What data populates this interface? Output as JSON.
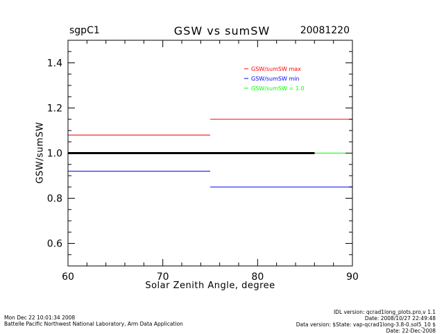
{
  "header": {
    "site": "sgpC1",
    "title": "GSW vs sumSW",
    "date": "20081220"
  },
  "footer": {
    "left": [
      "Mon Dec 22 10:01:34 2008",
      "Battelle Pacific Northwest National Laboratory, Arm Data Application"
    ],
    "right": [
      "IDL version: qcrad1long_plots.pro,v 1.1",
      "Date: 2008/10/27 22:49:48",
      "Data version: $State: vap-qcrad1long-3.8-0.sol5_10 $",
      "Date: 22-Dec-2008"
    ]
  },
  "chart_data": {
    "type": "line",
    "title": "GSW vs sumSW",
    "xlabel": "Solar Zenith Angle, degree",
    "ylabel": "GSW/sumSW",
    "xlim": [
      60,
      90
    ],
    "ylim": [
      0.5,
      1.5
    ],
    "xticks": [
      60,
      70,
      80,
      90
    ],
    "yticks": [
      0.6,
      0.8,
      1.0,
      1.2,
      1.4
    ],
    "ytick_labels": [
      "0.6",
      "0.8",
      "1.0",
      "1.2",
      "1.4"
    ],
    "legend_position": "top-right",
    "legend": [
      {
        "label": "GSW/sumSW max",
        "color": "#ff0000"
      },
      {
        "label": "GSW/sumSW min",
        "color": "#0000ff"
      },
      {
        "label": "GSW/sumSW = 1.0",
        "color": "#00ff00"
      }
    ],
    "series": [
      {
        "name": "GSW/sumSW max",
        "color": "#ff0000",
        "segments": [
          {
            "x": [
              60,
              75
            ],
            "y": 1.08
          },
          {
            "x": [
              75,
              90
            ],
            "y": 1.15
          }
        ]
      },
      {
        "name": "GSW/sumSW min",
        "color": "#0000ff",
        "segments": [
          {
            "x": [
              60,
              75
            ],
            "y": 0.92
          },
          {
            "x": [
              75,
              90
            ],
            "y": 0.85
          }
        ]
      },
      {
        "name": "GSW/sumSW = 1.0",
        "color": "#00ff00",
        "segments": [
          {
            "x": [
              60,
              90
            ],
            "y": 1.0
          }
        ]
      },
      {
        "color": "#000000",
        "segments": [
          {
            "x": [
              60,
              86
            ],
            "y": 1.0
          }
        ]
      }
    ]
  }
}
